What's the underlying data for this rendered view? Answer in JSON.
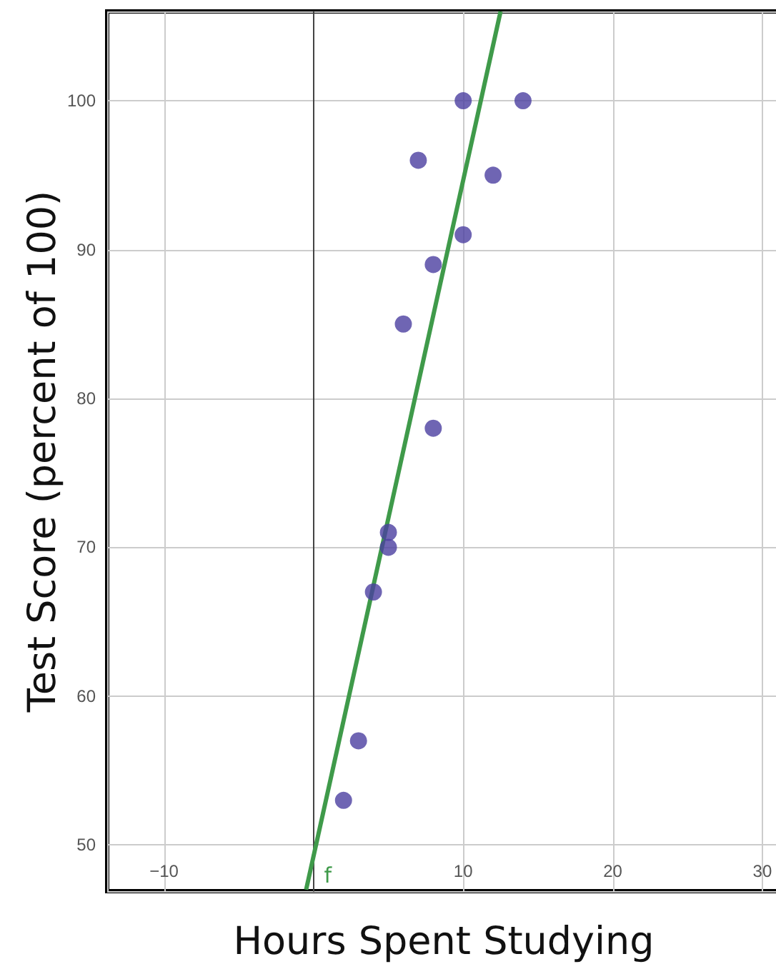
{
  "chart_data": {
    "type": "scatter",
    "xlabel": "Hours Spent Studying",
    "ylabel": "Test Score (percent of 100)",
    "xlim": [
      -13.8,
      31.2
    ],
    "ylim": [
      46.9,
      106
    ],
    "xticks": [
      {
        "value": -10,
        "label": "−10"
      },
      {
        "value": 0,
        "label": null
      },
      10,
      20,
      30
    ],
    "yticks": [
      50,
      60,
      70,
      80,
      90,
      100
    ],
    "grid": true,
    "marker": "circle",
    "series": [
      {
        "color": "#4b3fa0",
        "x": [
          2,
          3,
          4,
          5,
          5,
          6,
          7,
          8,
          8,
          10,
          10,
          12,
          14
        ],
        "values": [
          53,
          57,
          67,
          70,
          71,
          85,
          96,
          89,
          78,
          91,
          100,
          95,
          100
        ]
      },
      {
        "type": "line",
        "color": "#3f9a4a",
        "line_style": "solid",
        "marker": "none",
        "x": [
          -0.5,
          12.5
        ],
        "values": [
          47,
          106
        ]
      }
    ],
    "annotations": [
      {
        "text": "f",
        "x": 0,
        "y": 47
      }
    ]
  }
}
